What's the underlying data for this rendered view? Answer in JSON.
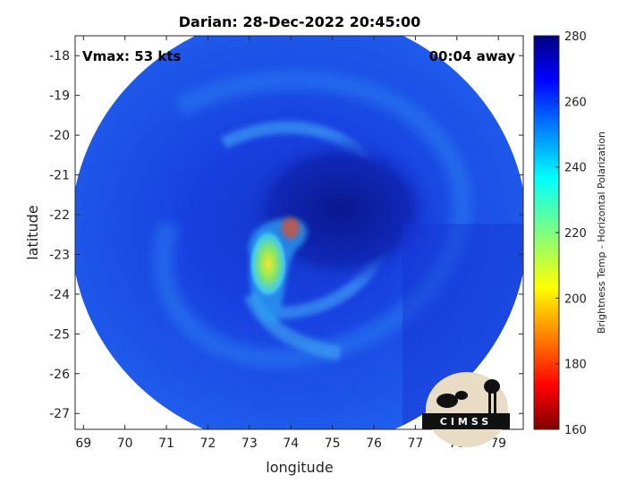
{
  "title": "Darian: 28-Dec-2022 20:45:00",
  "annotations": {
    "vmax": "Vmax: 53 kts",
    "offset": "00:04 away"
  },
  "logo_text": "CIMSS",
  "chart_data": {
    "type": "heatmap",
    "title": "Darian: 28-Dec-2022 20:45:00",
    "xlabel": "longitude",
    "ylabel": "latitude",
    "xlim": [
      68.8,
      79.6
    ],
    "ylim": [
      -27.4,
      -17.5
    ],
    "xticks": [
      69,
      70,
      71,
      72,
      73,
      74,
      75,
      76,
      77,
      78,
      79
    ],
    "yticks": [
      -18,
      -19,
      -20,
      -21,
      -22,
      -23,
      -24,
      -25,
      -26,
      -27
    ],
    "colorbar": {
      "label": "Brightness Temp - Horizontal Polarization",
      "range": [
        160,
        280
      ],
      "ticks": [
        160,
        180,
        200,
        220,
        240,
        260,
        280
      ]
    },
    "swath": {
      "center_lon": 74.2,
      "center_lat": -22.4,
      "radius_deg": 5.5
    },
    "storm_center": {
      "lon": 73.9,
      "lat": -22.7
    },
    "min_brightness_temp": 195,
    "colors": {
      "background_tb": "#1c47e8",
      "eye_tb": "#0d1fa8",
      "band_tb": "#2b86f5",
      "core_tb": "#e4e226"
    }
  }
}
